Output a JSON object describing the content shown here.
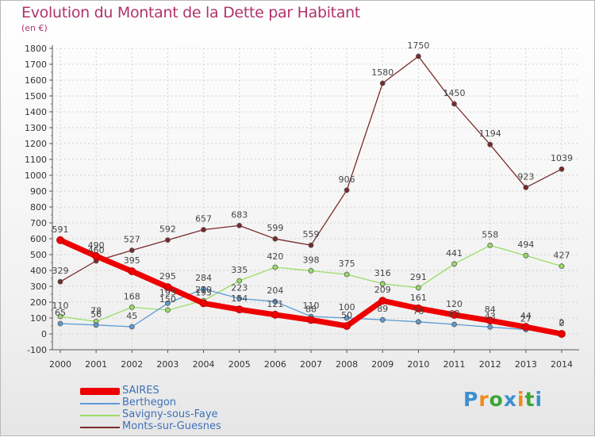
{
  "title": "Evolution du Montant de la Dette par Habitant",
  "subtitle": "(en €)",
  "logo": {
    "text": "Proxiti",
    "letter_colors": [
      "#3a8fd0",
      "#f08a1c",
      "#3aa639",
      "#3a8fd0",
      "#f08a1c",
      "#3aa639",
      "#3a8fd0"
    ]
  },
  "chart_data": {
    "type": "line",
    "title": "Evolution du Montant de la Dette par Habitant",
    "subtitle": "(en €)",
    "x": [
      "2000",
      "2001",
      "2002",
      "2003",
      "2004",
      "2005",
      "2006",
      "2007",
      "2008",
      "2009",
      "2010",
      "2011",
      "2012",
      "2013",
      "2014"
    ],
    "ylim": [
      -100,
      1800
    ],
    "yticks": [
      "-100",
      "0",
      "100",
      "200",
      "300",
      "400",
      "500",
      "600",
      "700",
      "800",
      "900",
      "1000",
      "1100",
      "1200",
      "1300",
      "1400",
      "1500",
      "1600",
      "1700",
      "1800"
    ],
    "grid": true,
    "legend_position": "bottom-left",
    "series": [
      {
        "name": "SAIRES",
        "color": "#ee0000",
        "values": [
          591,
          490,
          395,
          295,
          193,
          154,
          121,
          88,
          50,
          209,
          161,
          120,
          84,
          44,
          0
        ],
        "labels": [
          "591",
          "490",
          "395",
          "295",
          "193",
          "154",
          "121",
          "88",
          "50",
          "209",
          "161",
          "120",
          "84",
          "44",
          "0"
        ]
      },
      {
        "name": "Berthegon",
        "color": "#5b9bd5",
        "values": [
          65,
          56,
          45,
          193,
          284,
          223,
          204,
          110,
          100,
          89,
          76,
          60,
          43,
          27,
          2
        ],
        "labels": [
          "65",
          "56",
          "45",
          "193",
          "284",
          "223",
          "204",
          "110",
          "100",
          "89",
          "76",
          "60",
          "43",
          "27",
          "2"
        ]
      },
      {
        "name": "Savigny-sous-Faye",
        "color": "#99dd66",
        "values": [
          110,
          78,
          168,
          150,
          210,
          335,
          420,
          398,
          375,
          316,
          291,
          441,
          558,
          494,
          427
        ],
        "labels": [
          "110",
          "78",
          "168",
          "150",
          "210",
          "335",
          "420",
          "398",
          "375",
          "316",
          "291",
          "441",
          "558",
          "494",
          "427"
        ]
      },
      {
        "name": "Monts-sur-Guesnes",
        "color": "#7a2a2a",
        "values": [
          329,
          460,
          527,
          592,
          657,
          683,
          599,
          559,
          906,
          1580,
          1750,
          1450,
          1194,
          923,
          1039
        ],
        "labels": [
          "329",
          "460",
          "527",
          "592",
          "657",
          "683",
          "599",
          "559",
          "906",
          "1580",
          "1750",
          "1450",
          "1194",
          "923",
          "1039"
        ]
      }
    ]
  }
}
